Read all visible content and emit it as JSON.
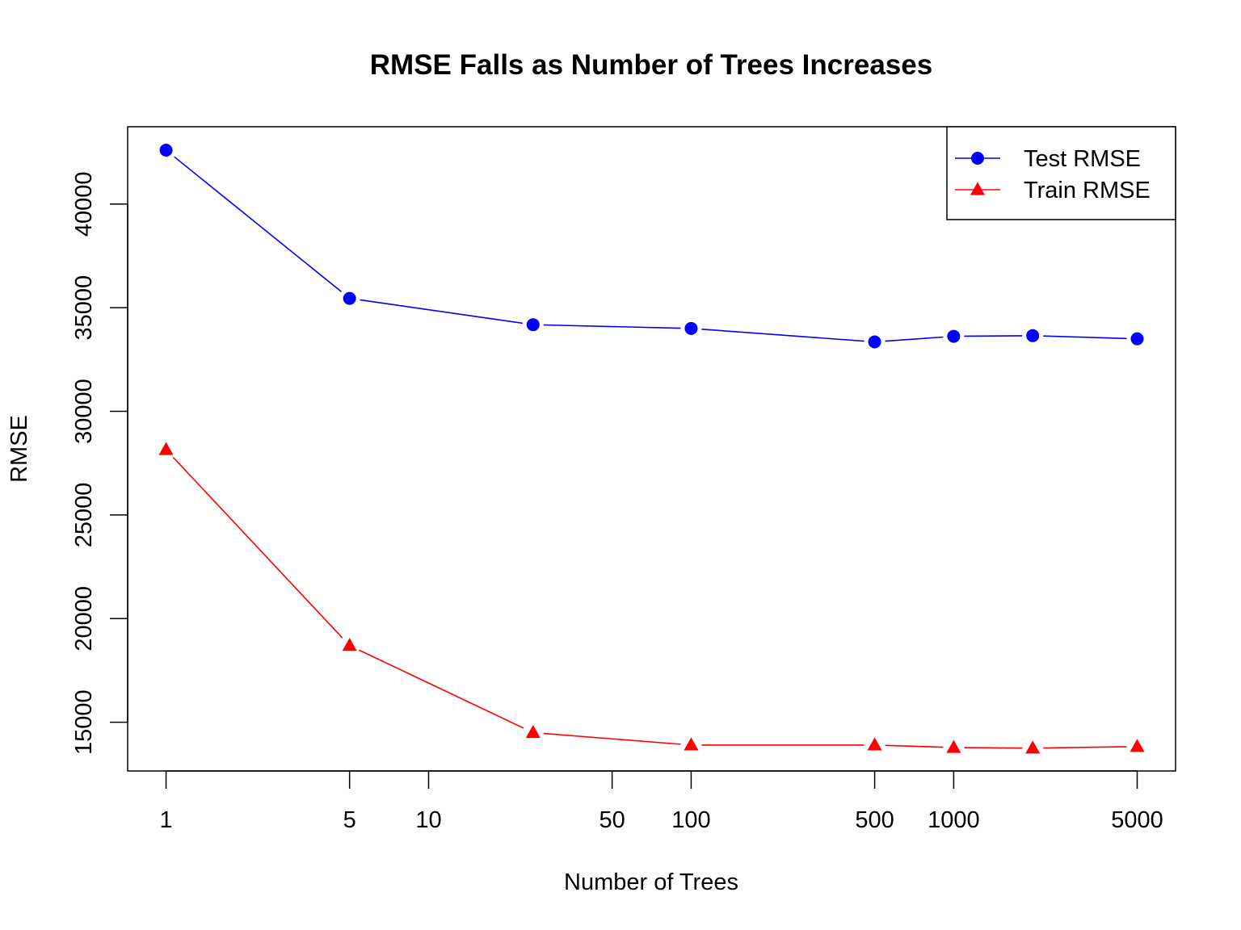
{
  "chart_data": {
    "type": "line",
    "title": "RMSE Falls as Number of Trees Increases",
    "xlabel": "Number of Trees",
    "ylabel": "RMSE",
    "x_scale": "log",
    "x_ticks": [
      1,
      5,
      10,
      50,
      100,
      500,
      1000,
      5000
    ],
    "x_tick_labels": [
      "1",
      "5",
      "10",
      "50",
      "100",
      "500",
      "1000",
      "5000"
    ],
    "y_ticks": [
      15000,
      20000,
      25000,
      30000,
      35000,
      40000
    ],
    "y_tick_labels": [
      "15000",
      "20000",
      "25000",
      "30000",
      "35000",
      "40000"
    ],
    "xlim": [
      0.714,
      7000
    ],
    "ylim": [
      12650,
      43730
    ],
    "grid": false,
    "legend_position": "top-right",
    "x": [
      1,
      5,
      25,
      100,
      500,
      1000,
      2000,
      5000
    ],
    "series": [
      {
        "name": "Test RMSE",
        "values": [
          42600,
          35450,
          34180,
          34000,
          33350,
          33620,
          33650,
          33500
        ],
        "color": "#0000ff",
        "marker": "circle"
      },
      {
        "name": "Train RMSE",
        "values": [
          28150,
          18700,
          14500,
          13900,
          13900,
          13780,
          13750,
          13830
        ],
        "color": "#ff0000",
        "marker": "triangle"
      }
    ]
  }
}
